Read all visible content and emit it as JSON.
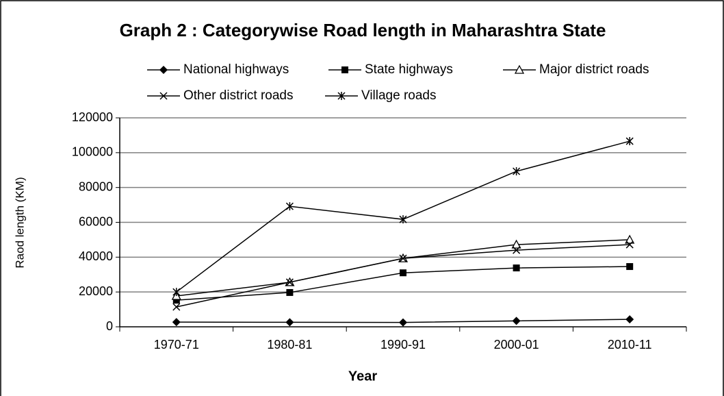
{
  "chart_data": {
    "type": "line",
    "title": "Graph 2 : Categorywise Road length  in Maharashtra State",
    "x_label": "Year",
    "y_label": "Raod length (KM)",
    "categories": [
      "1970-71",
      "1980-81",
      "1990-91",
      "2000-01",
      "2010-11"
    ],
    "series": [
      {
        "name": "National highways",
        "color": "#000000",
        "marker": "diamond",
        "values": [
          2700,
          2600,
          2500,
          3400,
          4300
        ]
      },
      {
        "name": "State highways",
        "color": "#000000",
        "marker": "square",
        "values": [
          15300,
          19700,
          31000,
          33800,
          34600
        ]
      },
      {
        "name": "Major district roads",
        "color": "#000000",
        "marker": "triangle",
        "values": [
          17700,
          25600,
          39300,
          47200,
          50000
        ]
      },
      {
        "name": "Other district roads",
        "color": "#000000",
        "marker": "x",
        "values": [
          11400,
          25600,
          39300,
          44000,
          47200
        ]
      },
      {
        "name": "Village roads",
        "color": "#000000",
        "marker": "star",
        "values": [
          20000,
          69200,
          61700,
          89300,
          106600
        ]
      }
    ],
    "ylim": [
      0,
      120000
    ],
    "yticks": [
      0,
      20000,
      40000,
      60000,
      80000,
      100000,
      120000
    ],
    "grid": true,
    "legend": "top"
  }
}
